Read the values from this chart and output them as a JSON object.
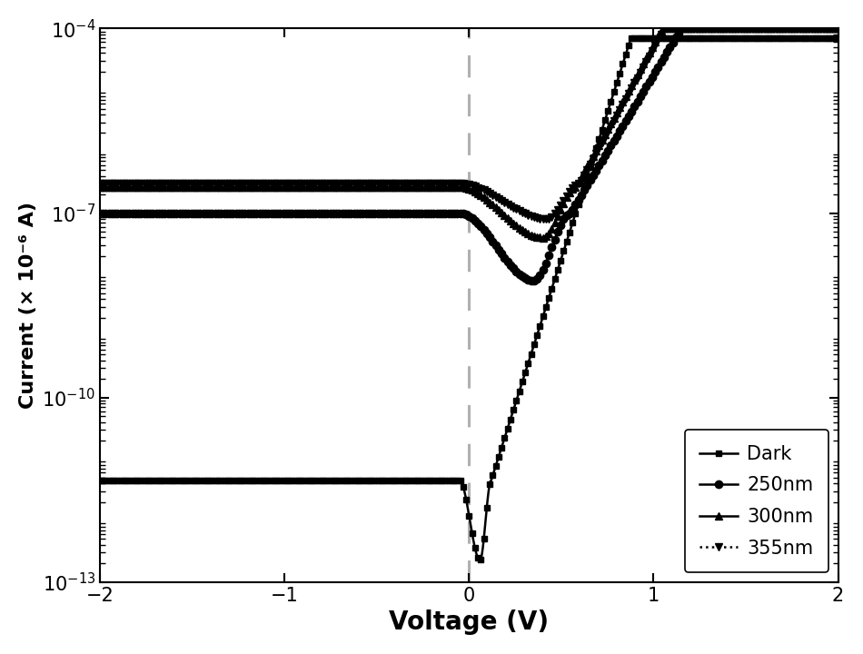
{
  "xlabel": "Voltage (V)",
  "ylabel": "Current (× 10⁻⁶ A)",
  "xlim": [
    -2,
    2
  ],
  "ylim_log": [
    -13,
    -4
  ],
  "dashed_x": 0.0,
  "legend_labels": [
    "Dark",
    "250nm",
    "300nm",
    "355nm"
  ],
  "background_color": "#ffffff",
  "line_color": "#000000",
  "dashed_color": "#b0b0b0",
  "xlabel_fontsize": 20,
  "ylabel_fontsize": 16,
  "tick_fontsize": 15,
  "legend_fontsize": 15,
  "curves": {
    "dark": {
      "flat_neg": -11.35,
      "v_start_drop": -0.05,
      "v_min": 0.06,
      "min_val": -12.65,
      "v_rise": 0.12,
      "rise_rate": 9.5,
      "flat_high": -4.15,
      "marker": "s",
      "markersize": 5,
      "linestyle": "solid",
      "markevery": 12
    },
    "nm250": {
      "flat_neg": -7.0,
      "v_start_drop": -0.05,
      "v_min": 0.35,
      "min_val": -8.1,
      "v_rise": 0.55,
      "rise_rate": 5.0,
      "flat_high": -4.0,
      "marker": "o",
      "markersize": 6,
      "linestyle": "solid",
      "markevery": 12
    },
    "nm300": {
      "flat_neg": -6.58,
      "v_start_drop": -0.05,
      "v_min": 0.4,
      "min_val": -7.4,
      "v_rise": 0.58,
      "rise_rate": 5.5,
      "flat_high": -4.0,
      "marker": "^",
      "markersize": 6,
      "linestyle": "solid",
      "markevery": 12
    },
    "nm355": {
      "flat_neg": -6.52,
      "v_start_drop": -0.05,
      "v_min": 0.42,
      "min_val": -7.1,
      "v_rise": 0.6,
      "rise_rate": 5.5,
      "flat_high": -4.0,
      "marker": "v",
      "markersize": 6,
      "linestyle": "dotted",
      "markevery": 12
    }
  }
}
